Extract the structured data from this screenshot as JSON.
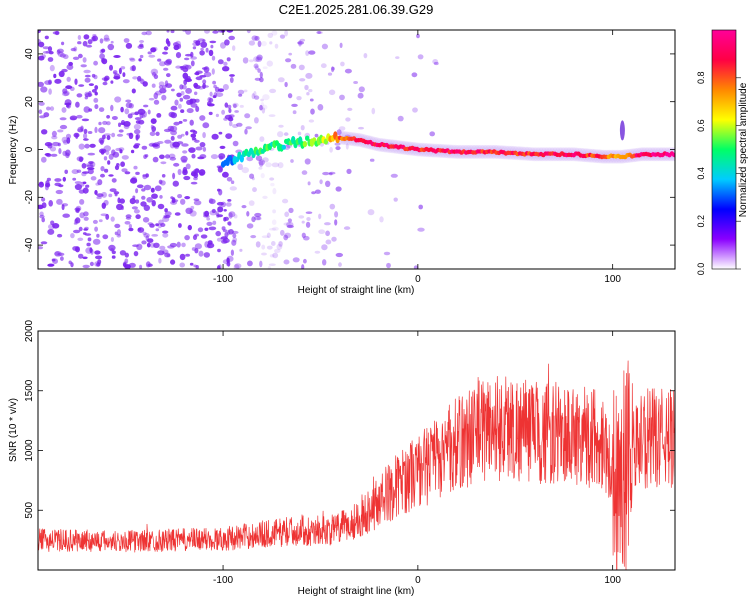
{
  "title": "C2E1.2025.281.06.39.G29",
  "colors": {
    "snr_line": "#ee3333",
    "dots": "#7a22ee",
    "axis": "#000000"
  },
  "chart_data": [
    {
      "type": "heatmap",
      "name": "spectrogram",
      "xlabel": "Height of straight line (km)",
      "ylabel": "Frequency (Hz)",
      "xlim": [
        -195,
        132
      ],
      "ylim": [
        -50,
        50
      ],
      "xticks": [
        -100,
        0,
        100
      ],
      "yticks": [
        -40,
        -20,
        0,
        20,
        40
      ],
      "xtick_labels": [
        "-100",
        "0",
        "100"
      ],
      "ytick_labels": [
        "-40",
        "-20",
        "0",
        "20",
        "40"
      ],
      "colorbar": {
        "label": "Normalized spectral amplitude",
        "range": [
          0,
          1
        ],
        "ticks": [
          0.0,
          0.2,
          0.4,
          0.6,
          0.8
        ],
        "tick_labels": [
          "0.0",
          "0.2",
          "0.4",
          "0.6",
          "0.8"
        ],
        "stops": [
          "#ffffff",
          "#8a00ff",
          "#0000ff",
          "#00ccff",
          "#00ff66",
          "#ffff00",
          "#ff8800",
          "#ff0044",
          "#ff0099"
        ]
      },
      "signal_trace": {
        "x": [
          -100,
          -90,
          -80,
          -70,
          -60,
          -50,
          -40,
          -30,
          -20,
          -10,
          0,
          20,
          40,
          60,
          80,
          95,
          105,
          115,
          132
        ],
        "freq": [
          -6,
          -3,
          0,
          2,
          3,
          4,
          5,
          4,
          2,
          1,
          0,
          -1,
          -1,
          -2,
          -2,
          -3,
          -3,
          -2,
          -2
        ],
        "amplitude": [
          0.3,
          0.4,
          0.5,
          0.45,
          0.5,
          0.55,
          0.8,
          0.85,
          0.9,
          0.9,
          0.85,
          0.9,
          0.85,
          0.85,
          0.9,
          0.8,
          0.7,
          0.95,
          0.95
        ]
      }
    },
    {
      "type": "line",
      "name": "snr",
      "xlabel": "Height of straight line (km)",
      "ylabel": "SNR (10 * v/v)",
      "xlim": [
        -195,
        132
      ],
      "ylim": [
        0,
        2000
      ],
      "xticks": [
        -100,
        0,
        100
      ],
      "yticks": [
        500,
        1000,
        1500,
        2000
      ],
      "xtick_labels": [
        "-100",
        "0",
        "100"
      ],
      "ytick_labels": [
        "500",
        "1000",
        "1500",
        "2000"
      ],
      "envelope": {
        "x": [
          -195,
          -150,
          -100,
          -80,
          -60,
          -45,
          -35,
          -25,
          -15,
          -5,
          5,
          15,
          25,
          35,
          45,
          60,
          80,
          95,
          102,
          108,
          115,
          132
        ],
        "y": [
          250,
          240,
          260,
          300,
          330,
          330,
          380,
          500,
          650,
          780,
          880,
          1000,
          1100,
          1200,
          1200,
          1150,
          1130,
          1100,
          700,
          900,
          1100,
          1100
        ]
      }
    }
  ]
}
